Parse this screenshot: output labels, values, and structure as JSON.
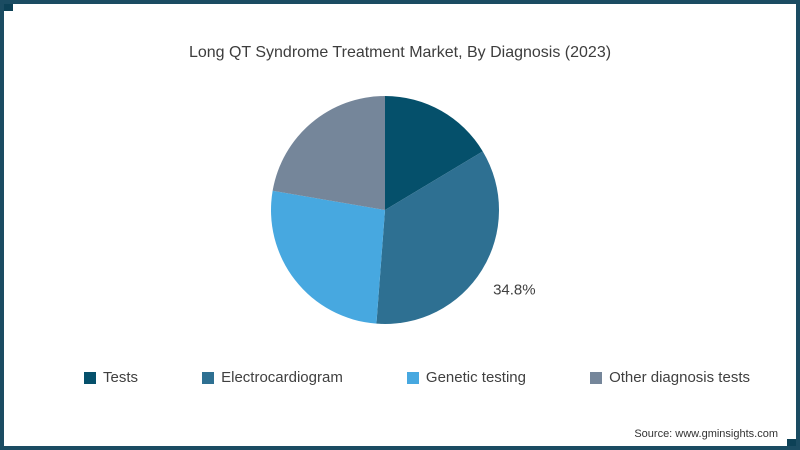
{
  "page": {
    "title": "Long QT Syndrome Treatment Market, By Diagnosis (2023)",
    "source": "Source: www.gminsights.com"
  },
  "theme": {
    "background": "#ffffff",
    "frame_color": "#1b4c62",
    "corner_accent_color": "#0d4156",
    "title_color": "#3d3d3d",
    "label_color": "#404040",
    "source_color": "#333333"
  },
  "chart_data": {
    "type": "pie",
    "title": "Long QT Syndrome Treatment Market, By Diagnosis (2023)",
    "start_angle_deg": 0,
    "direction": "clockwise",
    "legend_position": "bottom",
    "slices": [
      {
        "label": "Tests",
        "value": 16.4,
        "color": "#05506b"
      },
      {
        "label": "Electrocardiogram",
        "value": 34.8,
        "color": "#2e7092",
        "data_label": "34.8%"
      },
      {
        "label": "Genetic testing",
        "value": 26.5,
        "color": "#47a8e0"
      },
      {
        "label": "Other diagnosis tests",
        "value": 22.3,
        "color": "#75869a"
      }
    ],
    "annotation_note": "Only the Electrocardiogram slice carries a visible data label (34.8%); other values estimated from slice angles."
  }
}
